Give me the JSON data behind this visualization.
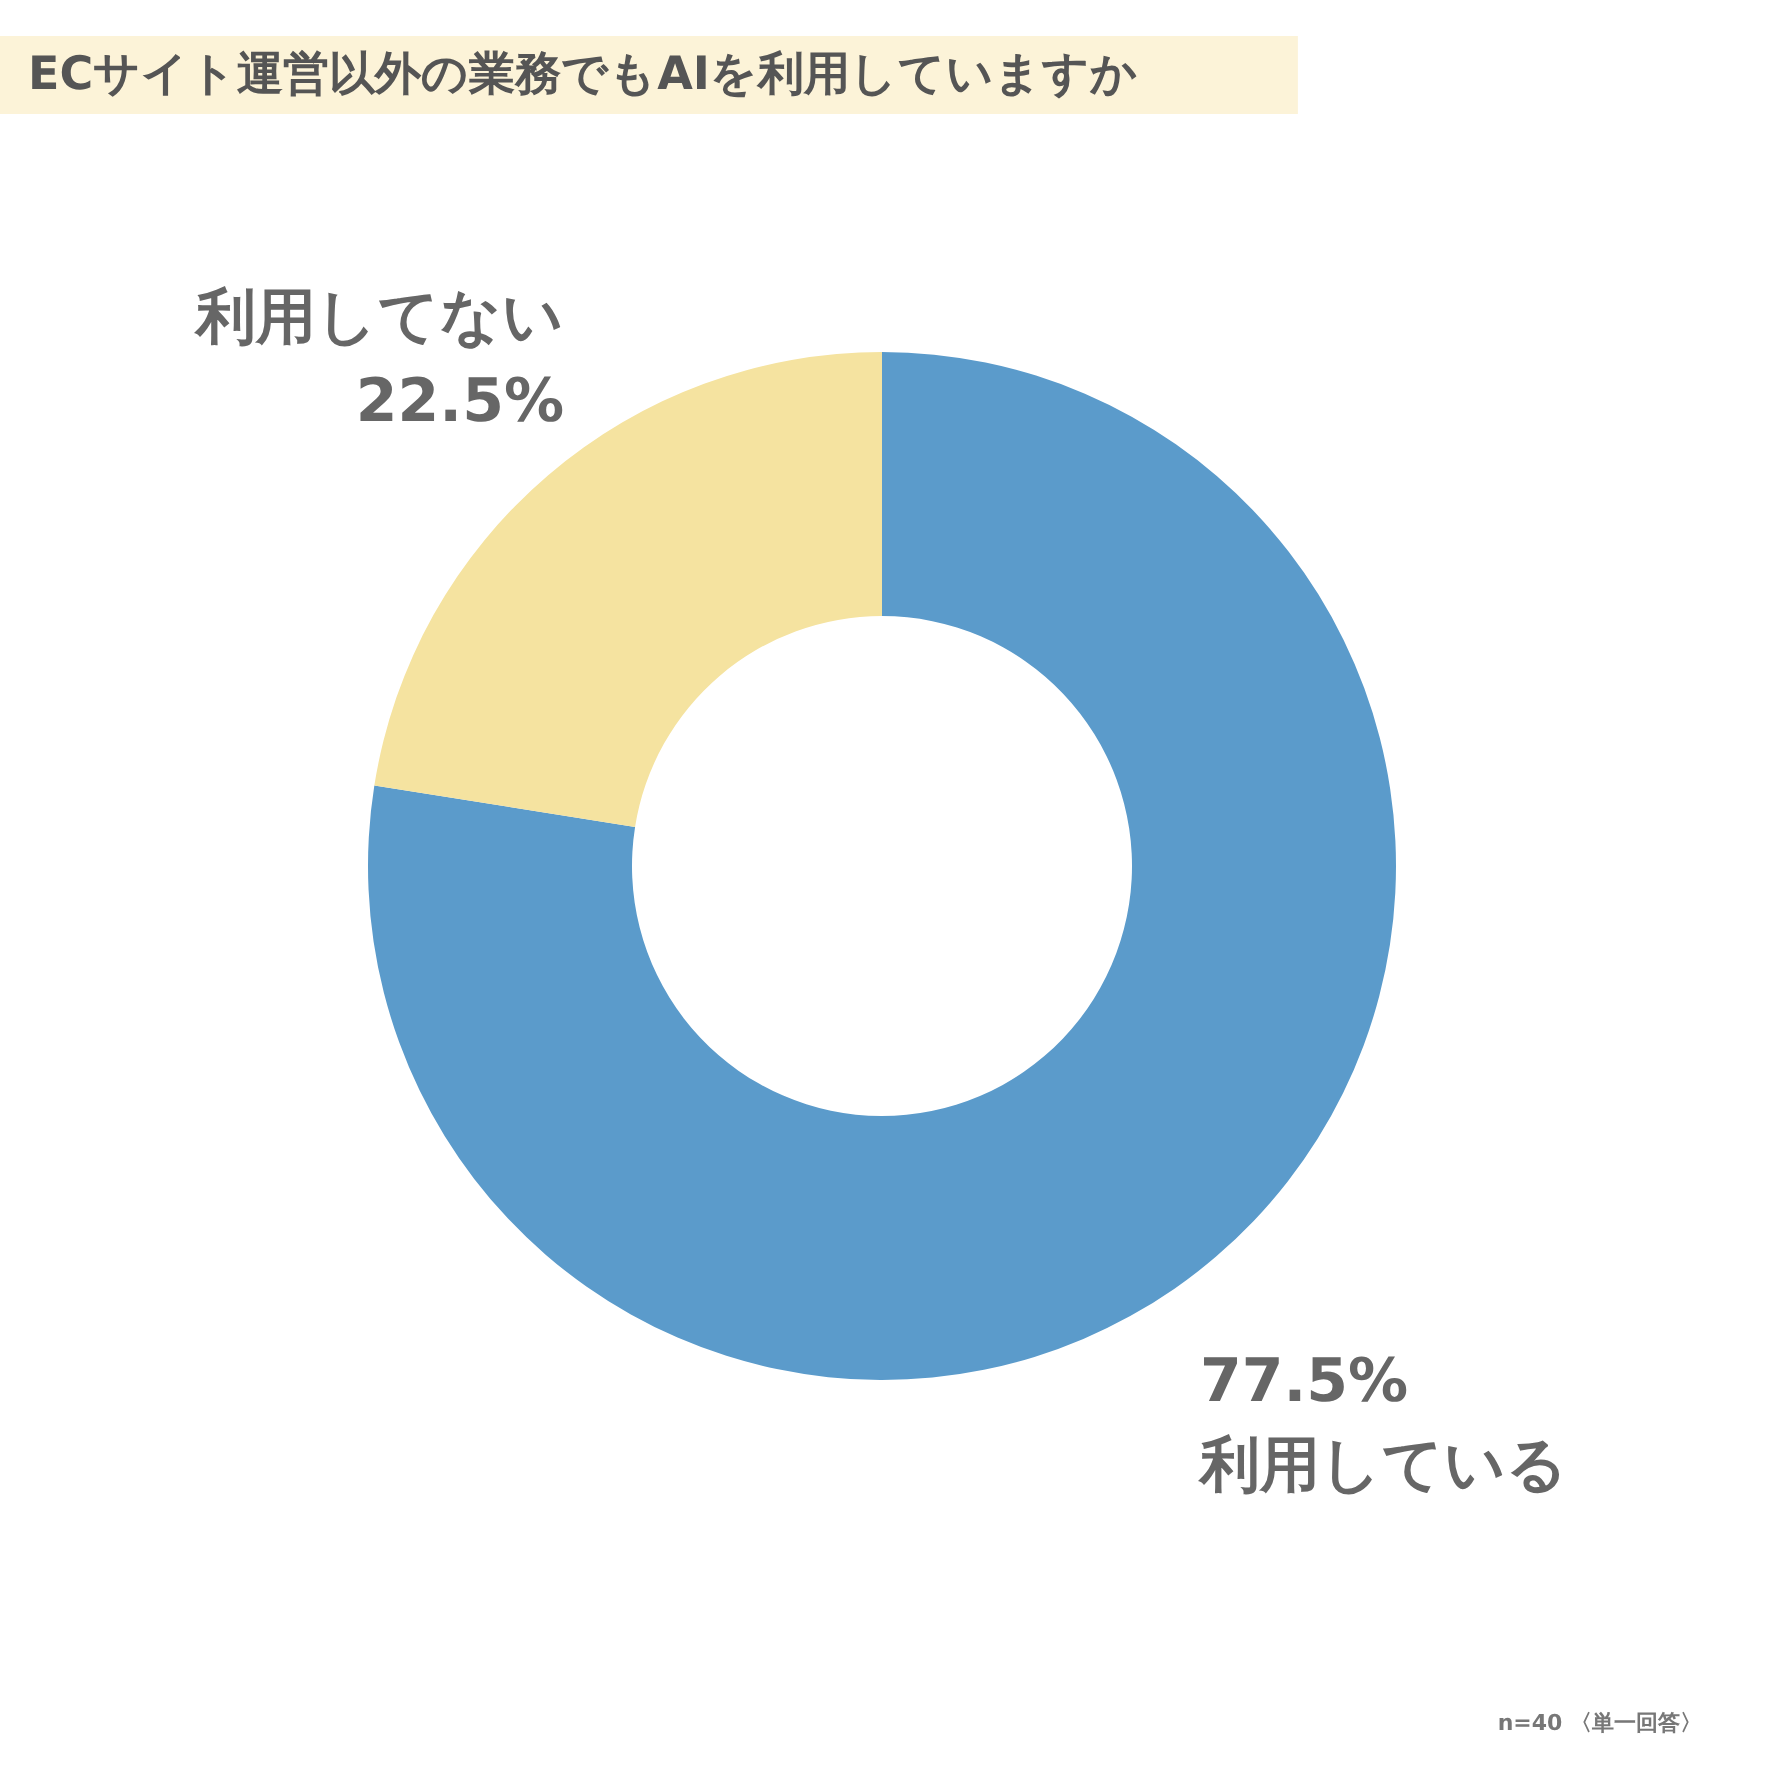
{
  "chart_data": {
    "type": "donut",
    "title": "ECサイト運営以外の業務でもAIを利用していますか",
    "categories": [
      "利用している",
      "利用してない"
    ],
    "values": [
      77.5,
      22.5
    ],
    "colors": [
      "#5b9bcb",
      "#f5e3a0"
    ],
    "value_labels": [
      "77.5%",
      "22.5%"
    ],
    "legend": false,
    "annotations": [
      "n=40 〈単一回答〉"
    ]
  }
}
